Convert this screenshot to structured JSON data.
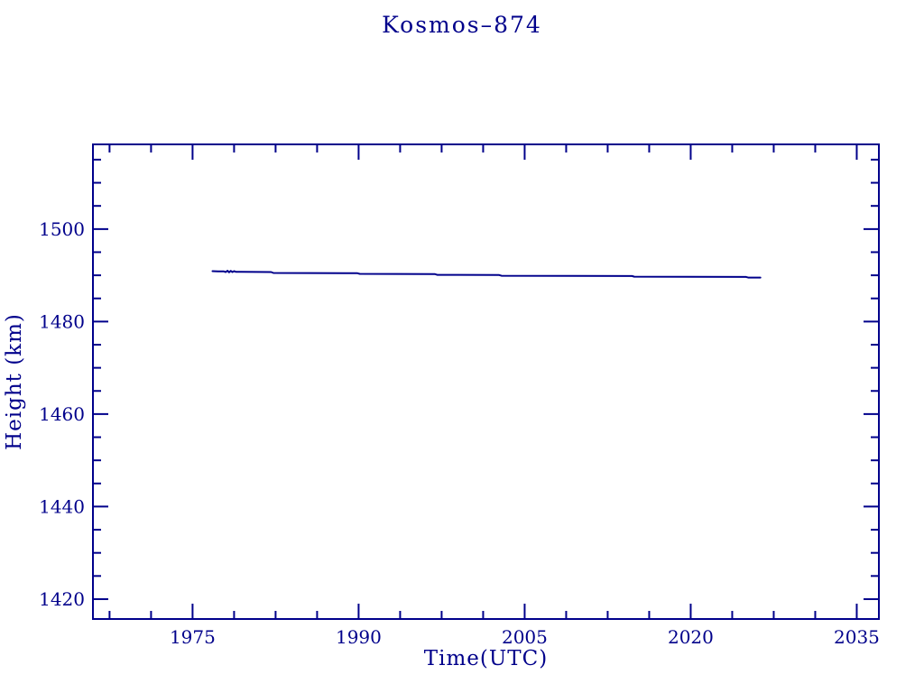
{
  "page": {
    "background_color": "#ffffff",
    "accent_color": "#00008B"
  },
  "chart_data": {
    "type": "line",
    "title": "Kosmos–874",
    "xlabel": "Time(UTC)",
    "ylabel": "Height (km)",
    "xlim": [
      1966,
      2037
    ],
    "ylim": [
      1415.7,
      1518.3
    ],
    "x_major_ticks": [
      1975,
      1990,
      2005,
      2020,
      2035
    ],
    "x_tick_labels": [
      "1975",
      "1990",
      "2005",
      "2020",
      "2035"
    ],
    "x_minor_interval": 3.75,
    "y_major_ticks": [
      1420,
      1440,
      1460,
      1480,
      1500
    ],
    "y_tick_labels": [
      "1420",
      "1440",
      "1460",
      "1480",
      "1500"
    ],
    "y_minor_interval": 5,
    "grid": false,
    "legend": null,
    "line_color": "#00008B",
    "series": [
      {
        "name": "height",
        "x": [
          1976.8,
          1977.3,
          1977.8,
          1978.0,
          1978.15,
          1978.3,
          1978.45,
          1978.6,
          1978.75,
          1978.9,
          1979.4,
          1982.1,
          1982.3,
          1989.9,
          1990.1,
          1996.9,
          1997.1,
          2002.7,
          2002.9,
          2014.7,
          2014.9,
          2025.0,
          2025.2,
          2026.3
        ],
        "y": [
          1490.9,
          1490.85,
          1490.85,
          1490.7,
          1491.0,
          1490.65,
          1490.95,
          1490.7,
          1490.9,
          1490.75,
          1490.75,
          1490.7,
          1490.5,
          1490.45,
          1490.3,
          1490.25,
          1490.1,
          1490.05,
          1489.9,
          1489.85,
          1489.7,
          1489.65,
          1489.5,
          1489.5
        ]
      }
    ]
  }
}
